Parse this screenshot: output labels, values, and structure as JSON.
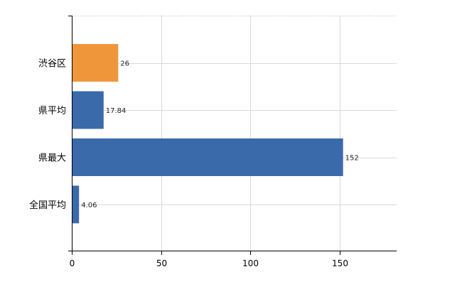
{
  "chart_data": {
    "type": "bar",
    "orientation": "horizontal",
    "categories": [
      "渋谷区",
      "県平均",
      "県最大",
      "全国平均"
    ],
    "values": [
      26,
      17.84,
      152,
      4.06
    ],
    "value_labels": [
      "26",
      "17.84",
      "152",
      "4.06"
    ],
    "bar_colors": [
      "#F0963A",
      "#3A6AAA",
      "#3A6AAA",
      "#3A6AAA"
    ],
    "xlim": [
      0,
      182
    ],
    "x_ticks": [
      0,
      50,
      100,
      150
    ],
    "x_tick_labels": [
      "0",
      "50",
      "100",
      "150"
    ],
    "grid": true
  }
}
